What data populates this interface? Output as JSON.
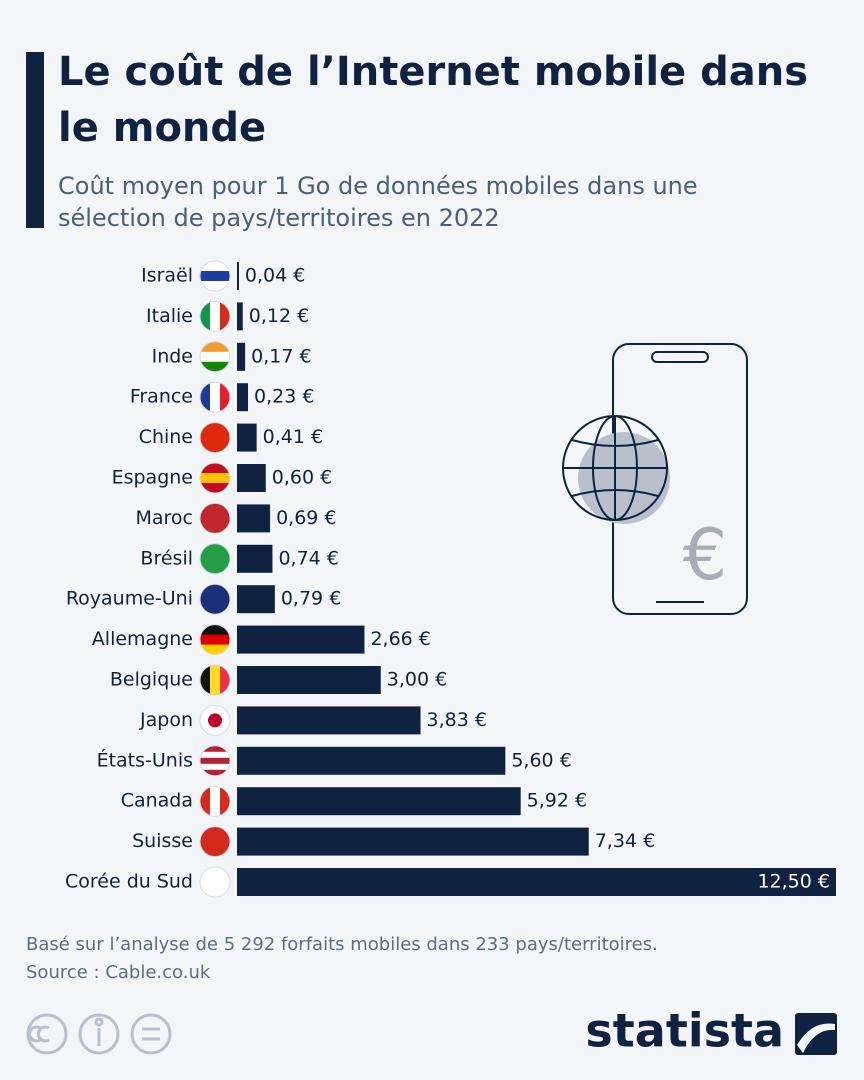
{
  "chart_data": {
    "type": "bar",
    "orientation": "horizontal",
    "title": "Le coût de l’Internet mobile dans le monde",
    "subtitle": "Coût moyen pour 1 Go de données mobiles dans une sélection de pays/territoires en 2022",
    "categories": [
      "Israël",
      "Italie",
      "Inde",
      "France",
      "Chine",
      "Espagne",
      "Maroc",
      "Brésil",
      "Royaume-Uni",
      "Allemagne",
      "Belgique",
      "Japon",
      "États-Unis",
      "Canada",
      "Suisse",
      "Corée du Sud"
    ],
    "values": [
      0.04,
      0.12,
      0.17,
      0.23,
      0.41,
      0.6,
      0.69,
      0.74,
      0.79,
      2.66,
      3.0,
      3.83,
      5.6,
      5.92,
      7.34,
      12.5
    ],
    "value_labels": [
      "0,04 €",
      "0,12 €",
      "0,17 €",
      "0,23 €",
      "0,41 €",
      "0,60 €",
      "0,69 €",
      "0,74 €",
      "0,79 €",
      "2,66 €",
      "3,00 €",
      "3,83 €",
      "5,60 €",
      "5,92 €",
      "7,34 €",
      "12,50 €"
    ],
    "color": "#0f2340",
    "icon_symbol": "€",
    "note": "Basé sur l’analyse de 5 292 forfaits mobiles dans 233 pays/territoires.",
    "source": "Source : Cable.co.uk",
    "brand": "statista"
  }
}
